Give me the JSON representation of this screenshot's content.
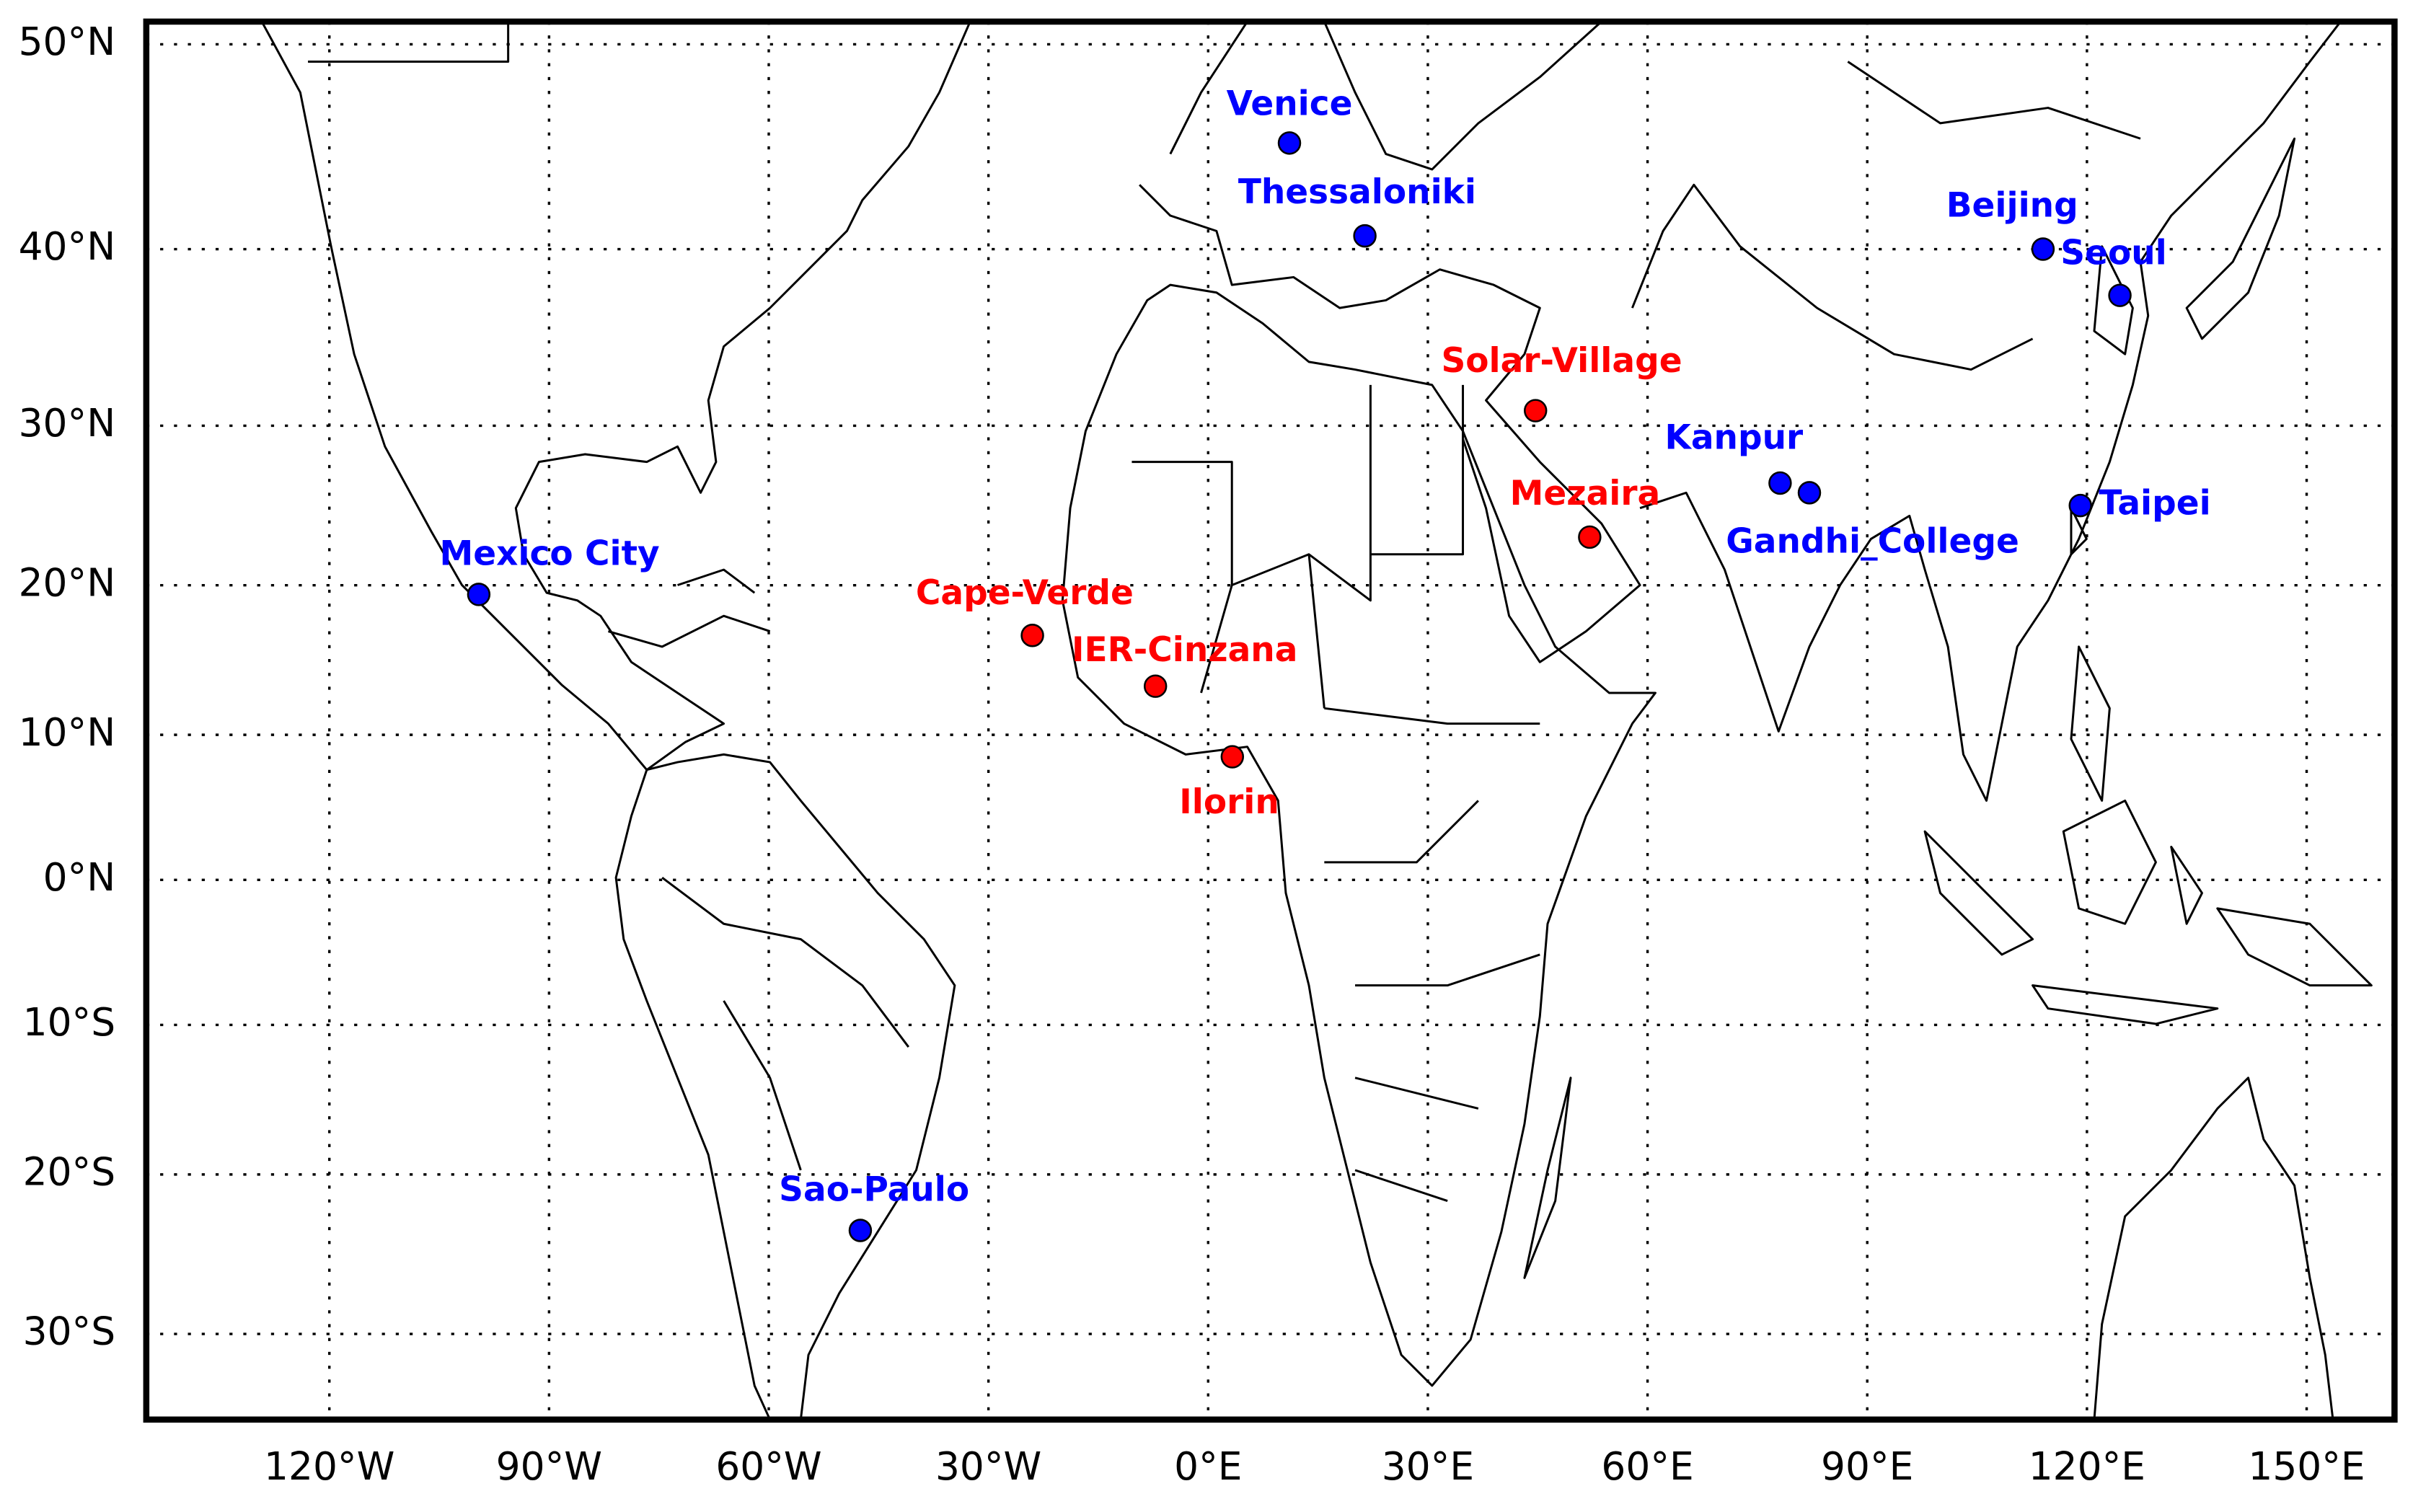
{
  "chart_data": {
    "type": "scatter",
    "projection": "mercator",
    "grid": true,
    "xlim": [
      -145,
      162
    ],
    "ylim": [
      -35,
      51
    ],
    "xticks": [
      {
        "value": -120,
        "label": "120°W"
      },
      {
        "value": -90,
        "label": "90°W"
      },
      {
        "value": -60,
        "label": "60°W"
      },
      {
        "value": -30,
        "label": "30°W"
      },
      {
        "value": 0,
        "label": "0°E"
      },
      {
        "value": 30,
        "label": "30°E"
      },
      {
        "value": 60,
        "label": "60°E"
      },
      {
        "value": 90,
        "label": "90°E"
      },
      {
        "value": 120,
        "label": "120°E"
      },
      {
        "value": 150,
        "label": "150°E"
      }
    ],
    "yticks": [
      {
        "value": -30,
        "label": "30°S"
      },
      {
        "value": -20,
        "label": "20°S"
      },
      {
        "value": -10,
        "label": "10°S"
      },
      {
        "value": 0,
        "label": "0°N"
      },
      {
        "value": 10,
        "label": "10°N"
      },
      {
        "value": 20,
        "label": "20°N"
      },
      {
        "value": 30,
        "label": "30°N"
      },
      {
        "value": 40,
        "label": "40°N"
      },
      {
        "value": 50,
        "label": "50°N"
      }
    ],
    "points": [
      {
        "name": "Venice",
        "x": 11.1,
        "y": 45.4,
        "color": "#0000ff"
      },
      {
        "name": "Thessaloniki",
        "x": 21.4,
        "y": 40.7,
        "color": "#0000ff"
      },
      {
        "name": "Beijing",
        "x": 114.0,
        "y": 40.0,
        "color": "#0000ff"
      },
      {
        "name": "Seoul",
        "x": 124.5,
        "y": 37.5,
        "color": "#0000ff"
      },
      {
        "name": "Kanpur",
        "x": 78.1,
        "y": 26.5,
        "color": "#0000ff"
      },
      {
        "name": "Gandhi_College",
        "x": 82.1,
        "y": 25.9,
        "color": "#0000ff"
      },
      {
        "name": "Taipei",
        "x": 119.1,
        "y": 25.1,
        "color": "#0000ff"
      },
      {
        "name": "Mexico City",
        "x": -99.6,
        "y": 19.4,
        "color": "#0000ff"
      },
      {
        "name": "Sao-Paulo",
        "x": -47.5,
        "y": -23.6,
        "color": "#0000ff"
      },
      {
        "name": "Solar-Village",
        "x": 44.7,
        "y": 30.9,
        "color": "#ff0000"
      },
      {
        "name": "Mezaira",
        "x": 52.1,
        "y": 23.1,
        "color": "#ff0000"
      },
      {
        "name": "Cape-Verde",
        "x": -24.0,
        "y": 16.7,
        "color": "#ff0000"
      },
      {
        "name": "IER-Cinzana",
        "x": -7.2,
        "y": 13.3,
        "color": "#ff0000"
      },
      {
        "name": "Ilorin",
        "x": 3.3,
        "y": 8.5,
        "color": "#ff0000"
      }
    ]
  }
}
